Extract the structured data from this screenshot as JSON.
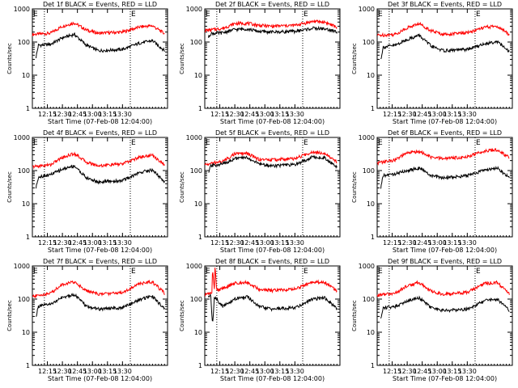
{
  "chart_data": [
    {
      "type": "line",
      "title": "Det 1f BLACK = Events, RED = LLD",
      "xlabel": "Start Time (07-Feb-08 12:04:00)",
      "ylabel": "Counts/sec",
      "xticks": [
        "12:15",
        "12:30",
        "12:45",
        "13:00",
        "13:15",
        "13:30"
      ],
      "yticks": [
        "1",
        "10",
        "100",
        "1000"
      ],
      "ylog": true,
      "ylim": [
        1,
        1000
      ],
      "marker_label": "E",
      "series": [
        {
          "color": "#ff0000",
          "points": [
            [
              12.0,
              170
            ],
            [
              12.3,
              185
            ],
            [
              12.5,
              300
            ],
            [
              12.7,
              380
            ],
            [
              12.9,
              230
            ],
            [
              13.1,
              185
            ],
            [
              13.5,
              200
            ],
            [
              13.8,
              290
            ],
            [
              14.0,
              310
            ],
            [
              14.2,
              180
            ]
          ]
        },
        {
          "color": "#000000",
          "points": [
            [
              12.06,
              35
            ],
            [
              12.1,
              80
            ],
            [
              12.3,
              85
            ],
            [
              12.5,
              135
            ],
            [
              12.7,
              170
            ],
            [
              12.9,
              80
            ],
            [
              13.1,
              55
            ],
            [
              13.5,
              60
            ],
            [
              13.8,
              95
            ],
            [
              14.0,
              110
            ],
            [
              14.2,
              55
            ]
          ]
        }
      ]
    },
    {
      "type": "line",
      "title": "Det 2f BLACK = Events, RED = LLD",
      "xlabel": "Start Time (07-Feb-08 12:04:00)",
      "ylabel": "Counts/sec",
      "xticks": [
        "12:15",
        "12:30",
        "12:45",
        "13:00",
        "13:15",
        "13:30"
      ],
      "yticks": [
        "1",
        "10",
        "100",
        "1000"
      ],
      "ylog": true,
      "ylim": [
        1,
        1000
      ],
      "marker_label": "E",
      "series": [
        {
          "color": "#ff0000",
          "points": [
            [
              12.0,
              220
            ],
            [
              12.3,
              260
            ],
            [
              12.5,
              360
            ],
            [
              12.7,
              370
            ],
            [
              12.9,
              320
            ],
            [
              13.1,
              300
            ],
            [
              13.5,
              320
            ],
            [
              13.8,
              420
            ],
            [
              14.0,
              400
            ],
            [
              14.2,
              280
            ]
          ]
        },
        {
          "color": "#000000",
          "points": [
            [
              12.06,
              140
            ],
            [
              12.1,
              180
            ],
            [
              12.3,
              190
            ],
            [
              12.5,
              240
            ],
            [
              12.7,
              250
            ],
            [
              12.9,
              210
            ],
            [
              13.1,
              200
            ],
            [
              13.5,
              210
            ],
            [
              13.8,
              260
            ],
            [
              14.0,
              250
            ],
            [
              14.2,
              200
            ]
          ]
        }
      ]
    },
    {
      "type": "line",
      "title": "Det 3f BLACK = Events, RED = LLD",
      "xlabel": "Start Time (07-Feb-08 12:04:00)",
      "ylabel": "Counts/sec",
      "xticks": [
        "12:15",
        "12:30",
        "12:45",
        "13:00",
        "13:15",
        "13:30"
      ],
      "yticks": [
        "1",
        "10",
        "100",
        "1000"
      ],
      "ylog": true,
      "ylim": [
        1,
        1000
      ],
      "marker_label": "E",
      "series": [
        {
          "color": "#ff0000",
          "points": [
            [
              12.0,
              160
            ],
            [
              12.3,
              170
            ],
            [
              12.5,
              270
            ],
            [
              12.7,
              360
            ],
            [
              12.9,
              220
            ],
            [
              13.1,
              170
            ],
            [
              13.5,
              190
            ],
            [
              13.8,
              280
            ],
            [
              14.0,
              300
            ],
            [
              14.2,
              170
            ]
          ]
        },
        {
          "color": "#000000",
          "points": [
            [
              12.06,
              30
            ],
            [
              12.1,
              70
            ],
            [
              12.3,
              80
            ],
            [
              12.5,
              120
            ],
            [
              12.7,
              160
            ],
            [
              12.9,
              75
            ],
            [
              13.1,
              55
            ],
            [
              13.5,
              60
            ],
            [
              13.8,
              90
            ],
            [
              14.0,
              105
            ],
            [
              14.2,
              50
            ]
          ]
        }
      ]
    },
    {
      "type": "line",
      "title": "Det 4f BLACK = Events, RED = LLD",
      "xlabel": "Start Time (07-Feb-08 12:04:00)",
      "ylabel": "Counts/sec",
      "xticks": [
        "12:15",
        "12:30",
        "12:45",
        "13:00",
        "13:15",
        "13:30"
      ],
      "yticks": [
        "1",
        "10",
        "100",
        "1000"
      ],
      "ylog": true,
      "ylim": [
        1,
        1000
      ],
      "marker_label": "E",
      "series": [
        {
          "color": "#ff0000",
          "points": [
            [
              12.0,
              130
            ],
            [
              12.3,
              150
            ],
            [
              12.5,
              250
            ],
            [
              12.7,
              330
            ],
            [
              12.9,
              180
            ],
            [
              13.1,
              140
            ],
            [
              13.5,
              160
            ],
            [
              13.8,
              260
            ],
            [
              14.0,
              290
            ],
            [
              14.2,
              150
            ]
          ]
        },
        {
          "color": "#000000",
          "points": [
            [
              12.06,
              30
            ],
            [
              12.1,
              65
            ],
            [
              12.3,
              75
            ],
            [
              12.5,
              110
            ],
            [
              12.7,
              140
            ],
            [
              12.9,
              60
            ],
            [
              13.1,
              45
            ],
            [
              13.5,
              50
            ],
            [
              13.8,
              90
            ],
            [
              14.0,
              105
            ],
            [
              14.2,
              45
            ]
          ]
        }
      ]
    },
    {
      "type": "line",
      "title": "Det 5f BLACK = Events, RED = LLD",
      "xlabel": "Start Time (07-Feb-08 12:04:00)",
      "ylabel": "Counts/sec",
      "xticks": [
        "12:15",
        "12:30",
        "12:45",
        "13:00",
        "13:15",
        "13:30"
      ],
      "yticks": [
        "1",
        "10",
        "100",
        "1000"
      ],
      "ylog": true,
      "ylim": [
        1,
        1000
      ],
      "marker_label": "E",
      "series": [
        {
          "color": "#ff0000",
          "points": [
            [
              12.0,
              150
            ],
            [
              12.3,
              190
            ],
            [
              12.5,
              320
            ],
            [
              12.7,
              330
            ],
            [
              12.9,
              220
            ],
            [
              13.1,
              210
            ],
            [
              13.5,
              230
            ],
            [
              13.8,
              370
            ],
            [
              14.0,
              340
            ],
            [
              14.2,
              180
            ]
          ]
        },
        {
          "color": "#000000",
          "points": [
            [
              12.06,
              80
            ],
            [
              12.1,
              140
            ],
            [
              12.3,
              160
            ],
            [
              12.5,
              230
            ],
            [
              12.7,
              250
            ],
            [
              12.9,
              160
            ],
            [
              13.1,
              140
            ],
            [
              13.5,
              150
            ],
            [
              13.8,
              260
            ],
            [
              14.0,
              240
            ],
            [
              14.2,
              130
            ]
          ]
        }
      ]
    },
    {
      "type": "line",
      "title": "Det 6f BLACK = Events, RED = LLD",
      "xlabel": "Start Time (07-Feb-08 12:04:00)",
      "ylabel": "Counts/sec",
      "xticks": [
        "12:15",
        "12:30",
        "12:45",
        "13:00",
        "13:15",
        "13:30"
      ],
      "yticks": [
        "1",
        "10",
        "100",
        "1000"
      ],
      "ylog": true,
      "ylim": [
        1,
        1000
      ],
      "marker_label": "E",
      "series": [
        {
          "color": "#ff0000",
          "points": [
            [
              12.0,
              170
            ],
            [
              12.3,
              210
            ],
            [
              12.5,
              340
            ],
            [
              12.7,
              380
            ],
            [
              12.9,
              250
            ],
            [
              13.1,
              230
            ],
            [
              13.5,
              260
            ],
            [
              13.8,
              400
            ],
            [
              14.0,
              420
            ],
            [
              14.2,
              250
            ]
          ]
        },
        {
          "color": "#000000",
          "points": [
            [
              12.06,
              30
            ],
            [
              12.1,
              70
            ],
            [
              12.3,
              80
            ],
            [
              12.5,
              100
            ],
            [
              12.7,
              120
            ],
            [
              12.9,
              70
            ],
            [
              13.1,
              60
            ],
            [
              13.5,
              70
            ],
            [
              13.8,
              105
            ],
            [
              14.0,
              120
            ],
            [
              14.2,
              60
            ]
          ]
        }
      ]
    },
    {
      "type": "line",
      "title": "Det 7f BLACK = Events, RED = LLD",
      "xlabel": "Start Time (07-Feb-08 12:04:00)",
      "ylabel": "Counts/sec",
      "xticks": [
        "12:15",
        "12:30",
        "12:45",
        "13:00",
        "13:15",
        "13:30"
      ],
      "yticks": [
        "1",
        "10",
        "100",
        "1000"
      ],
      "ylog": true,
      "ylim": [
        1,
        1000
      ],
      "marker_label": "E",
      "series": [
        {
          "color": "#ff0000",
          "points": [
            [
              12.0,
              120
            ],
            [
              12.3,
              150
            ],
            [
              12.5,
              280
            ],
            [
              12.7,
              330
            ],
            [
              12.9,
              180
            ],
            [
              13.1,
              140
            ],
            [
              13.5,
              160
            ],
            [
              13.8,
              300
            ],
            [
              14.0,
              330
            ],
            [
              14.2,
              150
            ]
          ]
        },
        {
          "color": "#000000",
          "points": [
            [
              12.06,
              30
            ],
            [
              12.1,
              60
            ],
            [
              12.3,
              70
            ],
            [
              12.5,
              110
            ],
            [
              12.7,
              140
            ],
            [
              12.9,
              60
            ],
            [
              13.1,
              50
            ],
            [
              13.5,
              55
            ],
            [
              13.8,
              100
            ],
            [
              14.0,
              120
            ],
            [
              14.2,
              50
            ]
          ]
        }
      ]
    },
    {
      "type": "line",
      "title": "Det 8f BLACK = Events, RED = LLD",
      "xlabel": "Start Time (07-Feb-08 12:04:00)",
      "ylabel": "Counts/sec",
      "xticks": [
        "12:15",
        "12:30",
        "12:45",
        "13:00",
        "13:15",
        "13:30"
      ],
      "yticks": [
        "1",
        "10",
        "100",
        "1000"
      ],
      "ylog": true,
      "ylim": [
        1,
        1000
      ],
      "marker_label": "E",
      "series": [
        {
          "color": "#ff0000",
          "points": [
            [
              12.0,
              140
            ],
            [
              12.12,
              150
            ],
            [
              12.13,
              1000
            ],
            [
              12.16,
              160
            ],
            [
              12.17,
              1000
            ],
            [
              12.2,
              180
            ],
            [
              12.5,
              300
            ],
            [
              12.7,
              330
            ],
            [
              12.9,
              200
            ],
            [
              13.1,
              180
            ],
            [
              13.5,
              200
            ],
            [
              13.8,
              330
            ],
            [
              14.0,
              320
            ],
            [
              14.2,
              180
            ]
          ]
        },
        {
          "color": "#000000",
          "points": [
            [
              12.06,
              120
            ],
            [
              12.1,
              130
            ],
            [
              12.13,
              15
            ],
            [
              12.16,
              120
            ],
            [
              12.3,
              60
            ],
            [
              12.5,
              100
            ],
            [
              12.7,
              120
            ],
            [
              12.9,
              60
            ],
            [
              13.1,
              50
            ],
            [
              13.5,
              55
            ],
            [
              13.8,
              100
            ],
            [
              14.0,
              110
            ],
            [
              14.2,
              50
            ]
          ]
        }
      ]
    },
    {
      "type": "line",
      "title": "Det 9f BLACK = Events, RED = LLD",
      "xlabel": "Start Time (07-Feb-08 12:04:00)",
      "ylabel": "Counts/sec",
      "xticks": [
        "12:15",
        "12:30",
        "12:45",
        "13:00",
        "13:15",
        "13:30"
      ],
      "yticks": [
        "1",
        "10",
        "100",
        "1000"
      ],
      "ylog": true,
      "ylim": [
        1,
        1000
      ],
      "marker_label": "E",
      "series": [
        {
          "color": "#ff0000",
          "points": [
            [
              12.0,
              130
            ],
            [
              12.3,
              150
            ],
            [
              12.5,
              250
            ],
            [
              12.7,
              320
            ],
            [
              12.9,
              170
            ],
            [
              13.1,
              140
            ],
            [
              13.5,
              160
            ],
            [
              13.8,
              300
            ],
            [
              14.0,
              320
            ],
            [
              14.2,
              140
            ]
          ]
        },
        {
          "color": "#000000",
          "points": [
            [
              12.06,
              25
            ],
            [
              12.1,
              55
            ],
            [
              12.3,
              60
            ],
            [
              12.5,
              90
            ],
            [
              12.7,
              110
            ],
            [
              12.9,
              55
            ],
            [
              13.1,
              45
            ],
            [
              13.5,
              50
            ],
            [
              13.8,
              90
            ],
            [
              14.0,
              100
            ],
            [
              14.2,
              45
            ]
          ]
        }
      ]
    }
  ]
}
